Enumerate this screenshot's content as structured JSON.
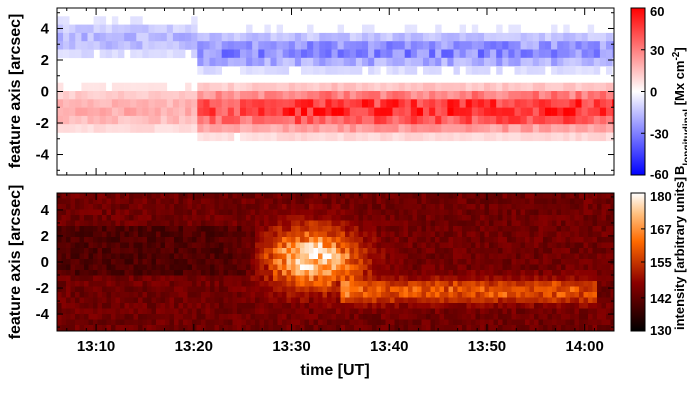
{
  "chart_data": [
    {
      "type": "heatmap",
      "panel": "top",
      "ylabel": "feature axis [arcsec]",
      "ylim": [
        -5.3,
        5.3
      ],
      "yticks": [
        -4,
        -2,
        0,
        2,
        4
      ],
      "xlim_minutes": [
        786,
        843
      ],
      "colorbar": {
        "title": "B",
        "title_sub": "longitudinal",
        "unit_text": "[Mx cm",
        "unit_sup": "-2",
        "unit_close": "]",
        "range": [
          -60,
          60
        ],
        "ticks": [
          60,
          30,
          0,
          -30,
          -60
        ],
        "colormap": "blue-white-red"
      },
      "data_gap_minutes": [
        844.8,
        852.0
      ],
      "features": [
        {
          "name": "positive polarity band",
          "sign": "+",
          "y_range": [
            -2.2,
            0.3
          ],
          "t_range": [
            788,
            843
          ],
          "peak": 60
        },
        {
          "name": "negative polarity band",
          "sign": "-",
          "y_range": [
            1.5,
            4.0
          ],
          "t_range": [
            790,
            845
          ],
          "peak": -60
        }
      ]
    },
    {
      "type": "heatmap",
      "panel": "bottom",
      "xlabel": "time [UT]",
      "ylabel": "feature axis [arcsec]",
      "ylim": [
        -5.3,
        5.3
      ],
      "yticks": [
        -4,
        -2,
        0,
        2,
        4
      ],
      "xticks": [
        "13:10",
        "13:20",
        "13:30",
        "13:40",
        "13:50",
        "14:00"
      ],
      "xtick_minutes": [
        790,
        800,
        810,
        820,
        830,
        840
      ],
      "xlim_minutes": [
        786,
        843
      ],
      "colorbar": {
        "title": "intensity [arbitrary units]",
        "range": [
          130,
          180
        ],
        "ticks": [
          180,
          167,
          155,
          142,
          130
        ],
        "colormap": "black-red-orange-white"
      },
      "features": [
        {
          "name": "brightening",
          "t_range": [
            807,
            817
          ],
          "y_range": [
            -2.0,
            3.0
          ],
          "peak": 180
        },
        {
          "name": "extended emission",
          "t_range": [
            817,
            840
          ],
          "y_range": [
            -3.0,
            -1.0
          ],
          "peak": 160
        }
      ]
    }
  ]
}
